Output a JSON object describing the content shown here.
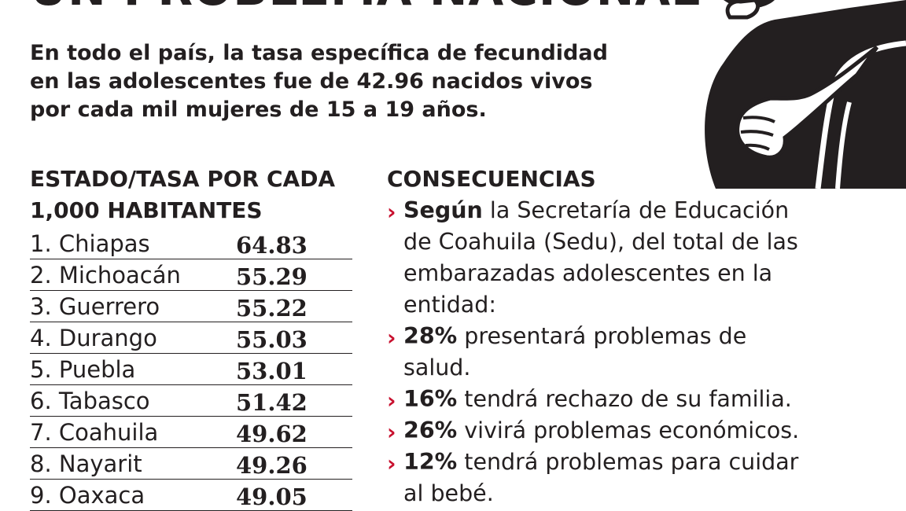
{
  "headline": "UN PROBLEMA NACIONAL",
  "intro_lines": [
    "En todo el país, la tasa específica de fecundidad",
    "en las adolescentes fue de 42.96 nacidos vivos",
    "por cada mil mujeres de 15 a 19 años."
  ],
  "table": {
    "header_lines": [
      "ESTADO/TASA POR CADA",
      "1,000 HABITANTES"
    ],
    "rows": [
      {
        "name": "1. Chiapas",
        "value": "64.83"
      },
      {
        "name": "2. Michoacán",
        "value": "55.29"
      },
      {
        "name": "3. Guerrero",
        "value": "55.22"
      },
      {
        "name": "4. Durango",
        "value": "55.03"
      },
      {
        "name": "5. Puebla",
        "value": "53.01"
      },
      {
        "name": "6. Tabasco",
        "value": "51.42"
      },
      {
        "name": "7. Coahuila",
        "value": "49.62"
      },
      {
        "name": "8. Nayarit",
        "value": "49.26"
      },
      {
        "name": "9. Oaxaca",
        "value": "49.05"
      }
    ]
  },
  "consequences": {
    "header": "CONSECUENCIAS",
    "bullet_glyph": "›",
    "bullet_color": "#c8102e",
    "items": [
      {
        "bold": "Según",
        "line1": " la Secretaría de Educación",
        "more": [
          "de Coahuila (Sedu), del total de las",
          "embarazadas adolescentes en la",
          "entidad:"
        ]
      },
      {
        "bold": "28%",
        "line1": " presentará problemas de",
        "more": [
          "salud."
        ]
      },
      {
        "bold": "16%",
        "line1": " tendrá rechazo de su familia.",
        "more": []
      },
      {
        "bold": "26%",
        "line1": " vivirá problemas económicos.",
        "more": []
      },
      {
        "bold": "12%",
        "line1": " tendrá problemas para cuidar",
        "more": [
          "al bebé."
        ]
      }
    ]
  },
  "illustration": {
    "icon": "pregnant-woman-illustration-icon",
    "fill": "#231f20"
  }
}
